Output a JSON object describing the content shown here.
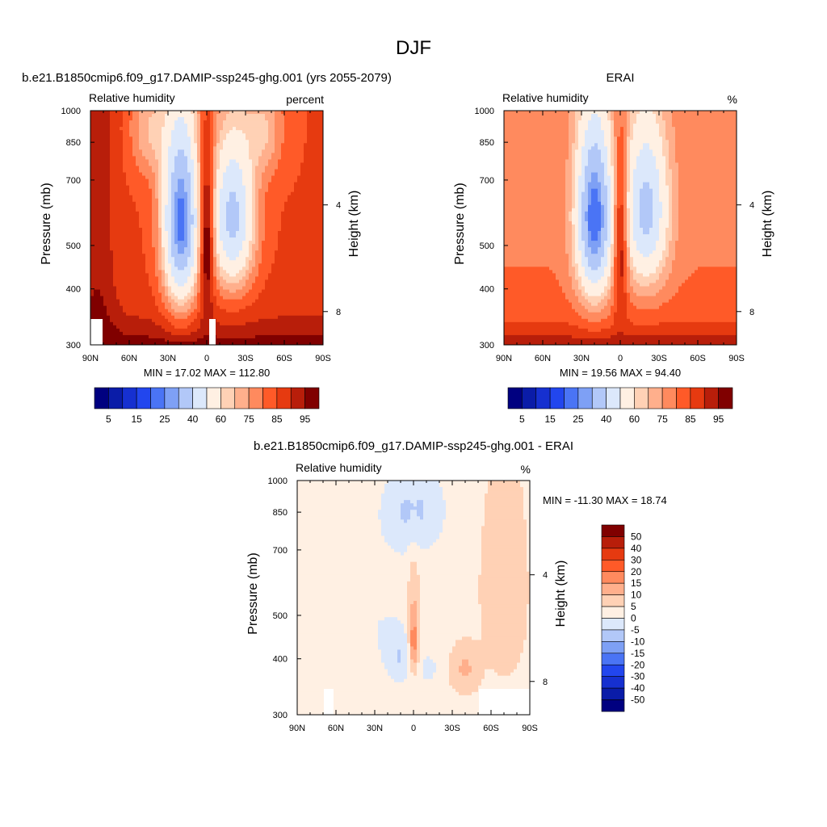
{
  "figure_title": "DJF",
  "colors": {
    "absolute": [
      "#000080",
      "#0a1ca8",
      "#1630d0",
      "#2246ee",
      "#4a74f5",
      "#7ea0f5",
      "#b2c8f8",
      "#dce8fb",
      "#fff0e3",
      "#ffd1b5",
      "#ffaf8c",
      "#ff8a5e",
      "#ff5a28",
      "#e63a10",
      "#b81e0a",
      "#800000"
    ],
    "diff": [
      "#000080",
      "#0a1ca8",
      "#1630d0",
      "#2246ee",
      "#4a74f5",
      "#7ea0f5",
      "#b2c8f8",
      "#dce8fb",
      "#fff0e3",
      "#ffd1b5",
      "#ffaf8c",
      "#ff8a5e",
      "#ff5a28",
      "#e63a10",
      "#b81e0a",
      "#800000"
    ]
  },
  "chart_data": [
    {
      "type": "heatmap",
      "id": "model",
      "title": "b.e21.B1850cmip6.f09_g17.DAMIP-ssp245-ghg.001 (yrs 2055-2079)",
      "left_label": "Relative humidity",
      "right_label": "percent",
      "ylabel": "Pressure (mb)",
      "y2label": "Height (km)",
      "yticks": [
        300,
        400,
        500,
        700,
        850,
        1000
      ],
      "ylim": [
        1000,
        300
      ],
      "y2ticks": [
        {
          "value": 8,
          "pressure": 356
        },
        {
          "value": 4,
          "pressure": 616
        }
      ],
      "xticks": [
        "90N",
        "60N",
        "30N",
        "0",
        "30S",
        "60S",
        "90S"
      ],
      "xlim": [
        90,
        -90
      ],
      "stats": "MIN =  17.02  MAX = 112.80",
      "colorbar": {
        "labels": [
          "5",
          "15",
          "25",
          "40",
          "60",
          "75",
          "85",
          "95"
        ],
        "levels": 16
      },
      "field": "model_rh"
    },
    {
      "type": "heatmap",
      "id": "obs",
      "title": "ERAI",
      "left_label": "Relative humidity",
      "right_label": "%",
      "ylabel": "Pressure (mb)",
      "y2label": "Height (km)",
      "yticks": [
        300,
        400,
        500,
        700,
        850,
        1000
      ],
      "ylim": [
        1000,
        300
      ],
      "y2ticks": [
        {
          "value": 8,
          "pressure": 356
        },
        {
          "value": 4,
          "pressure": 616
        }
      ],
      "xticks": [
        "90N",
        "60N",
        "30N",
        "0",
        "30S",
        "60S",
        "90S"
      ],
      "xlim": [
        90,
        -90
      ],
      "stats": "MIN =  19.56  MAX =  94.40",
      "colorbar": {
        "labels": [
          "5",
          "15",
          "25",
          "40",
          "60",
          "75",
          "85",
          "95"
        ],
        "levels": 16
      },
      "field": "obs_rh"
    },
    {
      "type": "heatmap",
      "id": "diff",
      "title": "b.e21.B1850cmip6.f09_g17.DAMIP-ssp245-ghg.001 - ERAI",
      "left_label": "Relative humidity",
      "right_label": "%",
      "ylabel": "Pressure (mb)",
      "y2label": "Height (km)",
      "yticks": [
        300,
        400,
        500,
        700,
        850,
        1000
      ],
      "ylim": [
        1000,
        300
      ],
      "y2ticks": [
        {
          "value": 8,
          "pressure": 356
        },
        {
          "value": 4,
          "pressure": 616
        }
      ],
      "xticks": [
        "90N",
        "60N",
        "30N",
        "0",
        "30S",
        "60S",
        "90S"
      ],
      "xlim": [
        90,
        -90
      ],
      "stats": "MIN = -11.30  MAX =  18.74",
      "colorbar": {
        "labels": [
          "50",
          "40",
          "30",
          "20",
          "15",
          "10",
          "5",
          "0",
          "-5",
          "-10",
          "-15",
          "-20",
          "-30",
          "-40",
          "-50"
        ],
        "levels": 16
      },
      "field": "diff_rh"
    }
  ]
}
